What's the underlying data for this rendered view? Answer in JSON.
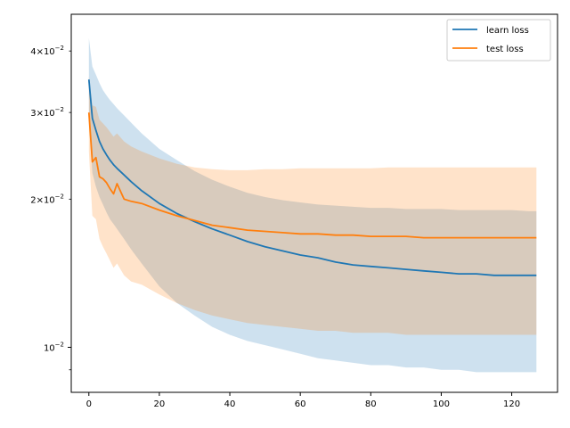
{
  "chart_data": {
    "type": "line",
    "title": "",
    "xlabel": "",
    "ylabel": "",
    "xlim": [
      -5,
      133
    ],
    "ylim": [
      0.0081,
      0.0475
    ],
    "yscale": "log",
    "grid": false,
    "legend_position": "top-right",
    "x_ticks": [
      0,
      20,
      40,
      60,
      80,
      100,
      120
    ],
    "x_tick_labels": [
      "0",
      "20",
      "40",
      "60",
      "80",
      "100",
      "120"
    ],
    "y_major_ticks": [
      0.01
    ],
    "y_major_tick_labels": [
      "10^-2"
    ],
    "y_minor_ticks": [
      0.009,
      0.02,
      0.03,
      0.04
    ],
    "y_minor_tick_labels": [
      "",
      "2×10^-2",
      "3×10^-2",
      "4×10^-2"
    ],
    "x": [
      0,
      1,
      2,
      3,
      4,
      5,
      6,
      7,
      8,
      10,
      12,
      15,
      20,
      25,
      30,
      35,
      40,
      45,
      50,
      55,
      60,
      65,
      70,
      75,
      80,
      85,
      90,
      95,
      100,
      105,
      110,
      115,
      120,
      125,
      127
    ],
    "series": [
      {
        "name": "learn loss",
        "color": "#1f77b4",
        "values": [
          0.035,
          0.0292,
          0.0276,
          0.0262,
          0.0253,
          0.0246,
          0.024,
          0.0235,
          0.0231,
          0.0224,
          0.0217,
          0.0208,
          0.0196,
          0.0187,
          0.018,
          0.0174,
          0.0169,
          0.0164,
          0.016,
          0.0157,
          0.0154,
          0.0152,
          0.0149,
          0.0147,
          0.0146,
          0.0145,
          0.0144,
          0.0143,
          0.0142,
          0.0141,
          0.0141,
          0.014,
          0.014,
          0.014,
          0.014
        ],
        "band_upper": [
          0.0425,
          0.0372,
          0.0358,
          0.0344,
          0.0333,
          0.0325,
          0.0318,
          0.0312,
          0.0306,
          0.0296,
          0.0286,
          0.0272,
          0.0253,
          0.024,
          0.0228,
          0.0219,
          0.0212,
          0.0206,
          0.0202,
          0.0199,
          0.0197,
          0.0195,
          0.0194,
          0.0193,
          0.0192,
          0.0192,
          0.0191,
          0.0191,
          0.0191,
          0.019,
          0.019,
          0.019,
          0.019,
          0.0189,
          0.0189
        ],
        "band_lower": [
          0.029,
          0.0226,
          0.0212,
          0.0202,
          0.0195,
          0.0188,
          0.0182,
          0.0178,
          0.0174,
          0.0166,
          0.0158,
          0.0148,
          0.0133,
          0.0123,
          0.0116,
          0.011,
          0.0106,
          0.0103,
          0.0101,
          0.0099,
          0.0097,
          0.0095,
          0.0094,
          0.0093,
          0.0092,
          0.0092,
          0.0091,
          0.0091,
          0.009,
          0.009,
          0.0089,
          0.0089,
          0.0089,
          0.0089,
          0.0089
        ]
      },
      {
        "name": "test loss",
        "color": "#ff7f0e",
        "values": [
          0.03,
          0.0238,
          0.0243,
          0.0222,
          0.022,
          0.0216,
          0.021,
          0.0205,
          0.0215,
          0.02,
          0.0198,
          0.0196,
          0.019,
          0.0185,
          0.0181,
          0.0177,
          0.0175,
          0.0173,
          0.0172,
          0.0171,
          0.017,
          0.017,
          0.0169,
          0.0169,
          0.0168,
          0.0168,
          0.0168,
          0.0167,
          0.0167,
          0.0167,
          0.0167,
          0.0167,
          0.0167,
          0.0167,
          0.0167
        ],
        "band_upper": [
          0.0355,
          0.031,
          0.0308,
          0.029,
          0.0285,
          0.028,
          0.0274,
          0.0268,
          0.0272,
          0.0262,
          0.0256,
          0.025,
          0.0242,
          0.0236,
          0.0232,
          0.023,
          0.0229,
          0.0229,
          0.023,
          0.023,
          0.0231,
          0.0231,
          0.0231,
          0.0231,
          0.0231,
          0.0232,
          0.0232,
          0.0232,
          0.0232,
          0.0232,
          0.0232,
          0.0232,
          0.0232,
          0.0232,
          0.0232
        ],
        "band_lower": [
          0.025,
          0.0185,
          0.0182,
          0.0166,
          0.016,
          0.0155,
          0.015,
          0.0145,
          0.0148,
          0.014,
          0.0136,
          0.0134,
          0.0128,
          0.0123,
          0.0119,
          0.0116,
          0.0114,
          0.0112,
          0.0111,
          0.011,
          0.0109,
          0.0108,
          0.0108,
          0.0107,
          0.0107,
          0.0107,
          0.0106,
          0.0106,
          0.0106,
          0.0106,
          0.0106,
          0.0106,
          0.0106,
          0.0106,
          0.0106
        ]
      }
    ],
    "band_colors": {
      "learn loss": "#1f77b4",
      "test loss": "#ff7f0e"
    }
  }
}
